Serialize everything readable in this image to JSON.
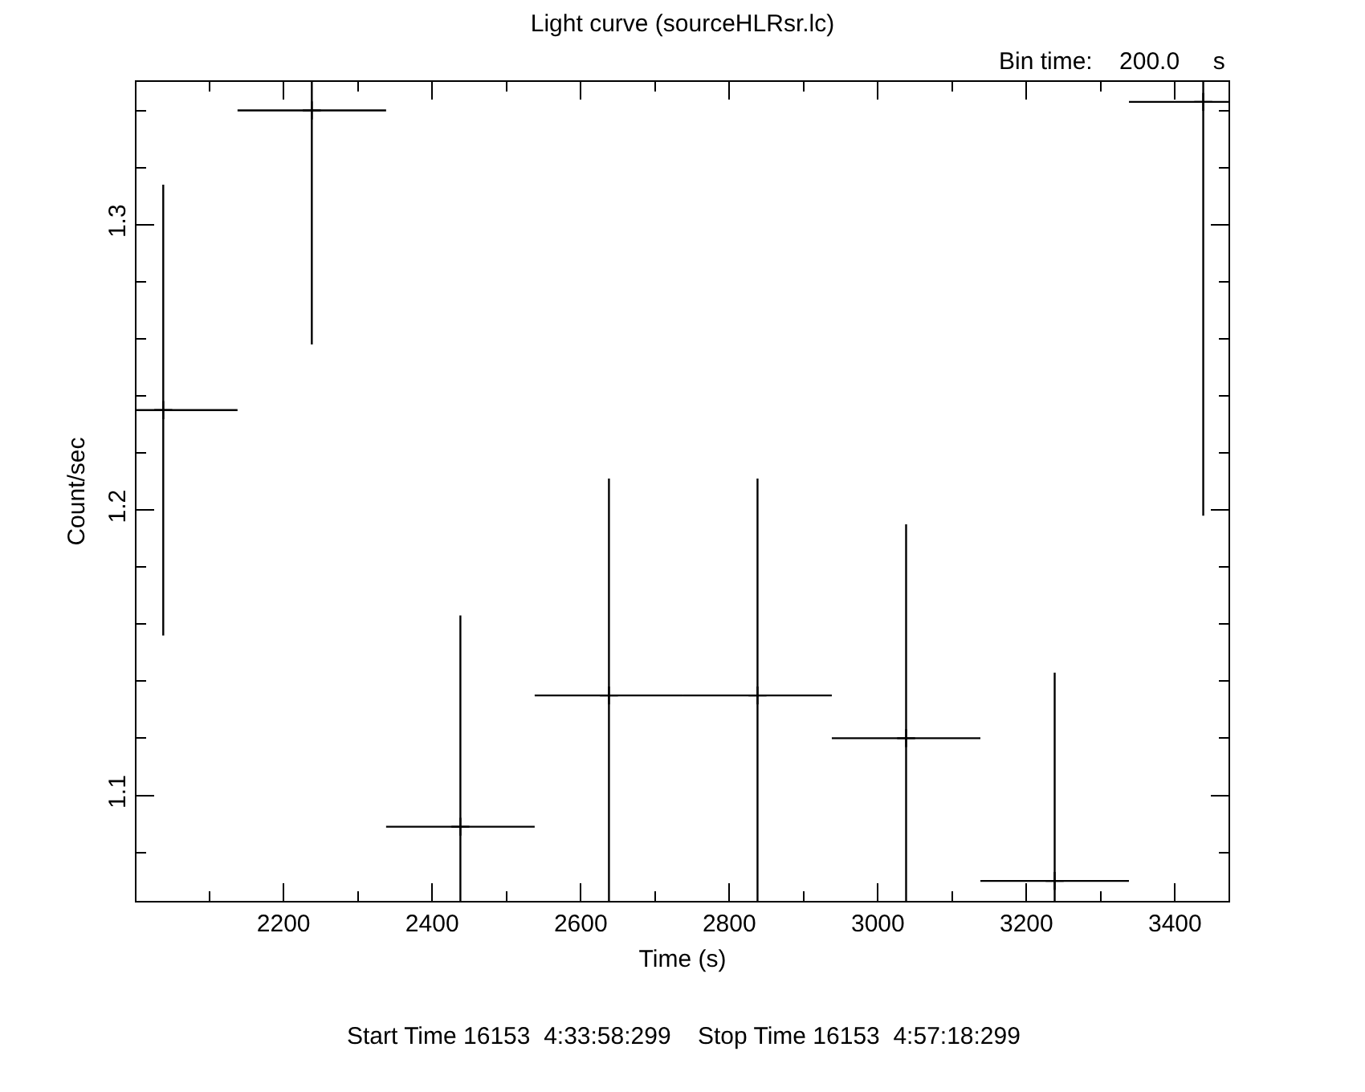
{
  "chart_data": {
    "type": "scatter",
    "title": "Light curve (sourceHLRsr.lc)",
    "xlabel": "Time (s)",
    "ylabel": "Count/sec",
    "annotations": [
      "Bin time:    200.0     s",
      "Start Time 16153  4:33:58:299    Stop Time 16153  4:57:18:299"
    ],
    "x": [
      2038,
      2238,
      2438,
      2638,
      2838,
      3038,
      3238,
      3438
    ],
    "series": [
      {
        "color": "#000000",
        "values": [
          1.235,
          1.34,
          1.089,
          1.135,
          1.135,
          1.12,
          1.07,
          1.343
        ],
        "errors": [
          0.079,
          0.082,
          0.074,
          0.076,
          0.076,
          0.075,
          0.073,
          0.145
        ],
        "xerrors": [
          100,
          100,
          100,
          100,
          100,
          100,
          100,
          100
        ]
      }
    ],
    "xlim": [
      2002,
      3472
    ],
    "ylim": [
      1.063,
      1.35
    ],
    "xticks": [
      {
        "value": 2100,
        "label": null
      },
      2200,
      {
        "value": 2300,
        "label": null
      },
      2400,
      {
        "value": 2500,
        "label": null
      },
      2600,
      {
        "value": 2700,
        "label": null
      },
      2800,
      {
        "value": 2900,
        "label": null
      },
      3000,
      {
        "value": 3100,
        "label": null
      },
      3200,
      {
        "value": 3300,
        "label": null
      },
      3400
    ],
    "yticks": [
      {
        "value": 1.08,
        "label": null
      },
      1.1,
      {
        "value": 1.12,
        "label": null
      },
      {
        "value": 1.14,
        "label": null
      },
      {
        "value": 1.16,
        "label": null
      },
      {
        "value": 1.18,
        "label": null
      },
      1.2,
      {
        "value": 1.22,
        "label": null
      },
      {
        "value": 1.24,
        "label": null
      },
      {
        "value": 1.26,
        "label": null
      },
      {
        "value": 1.28,
        "label": null
      },
      1.3,
      {
        "value": 1.32,
        "label": null
      },
      {
        "value": 1.34,
        "label": null
      }
    ],
    "marker": "cross"
  }
}
